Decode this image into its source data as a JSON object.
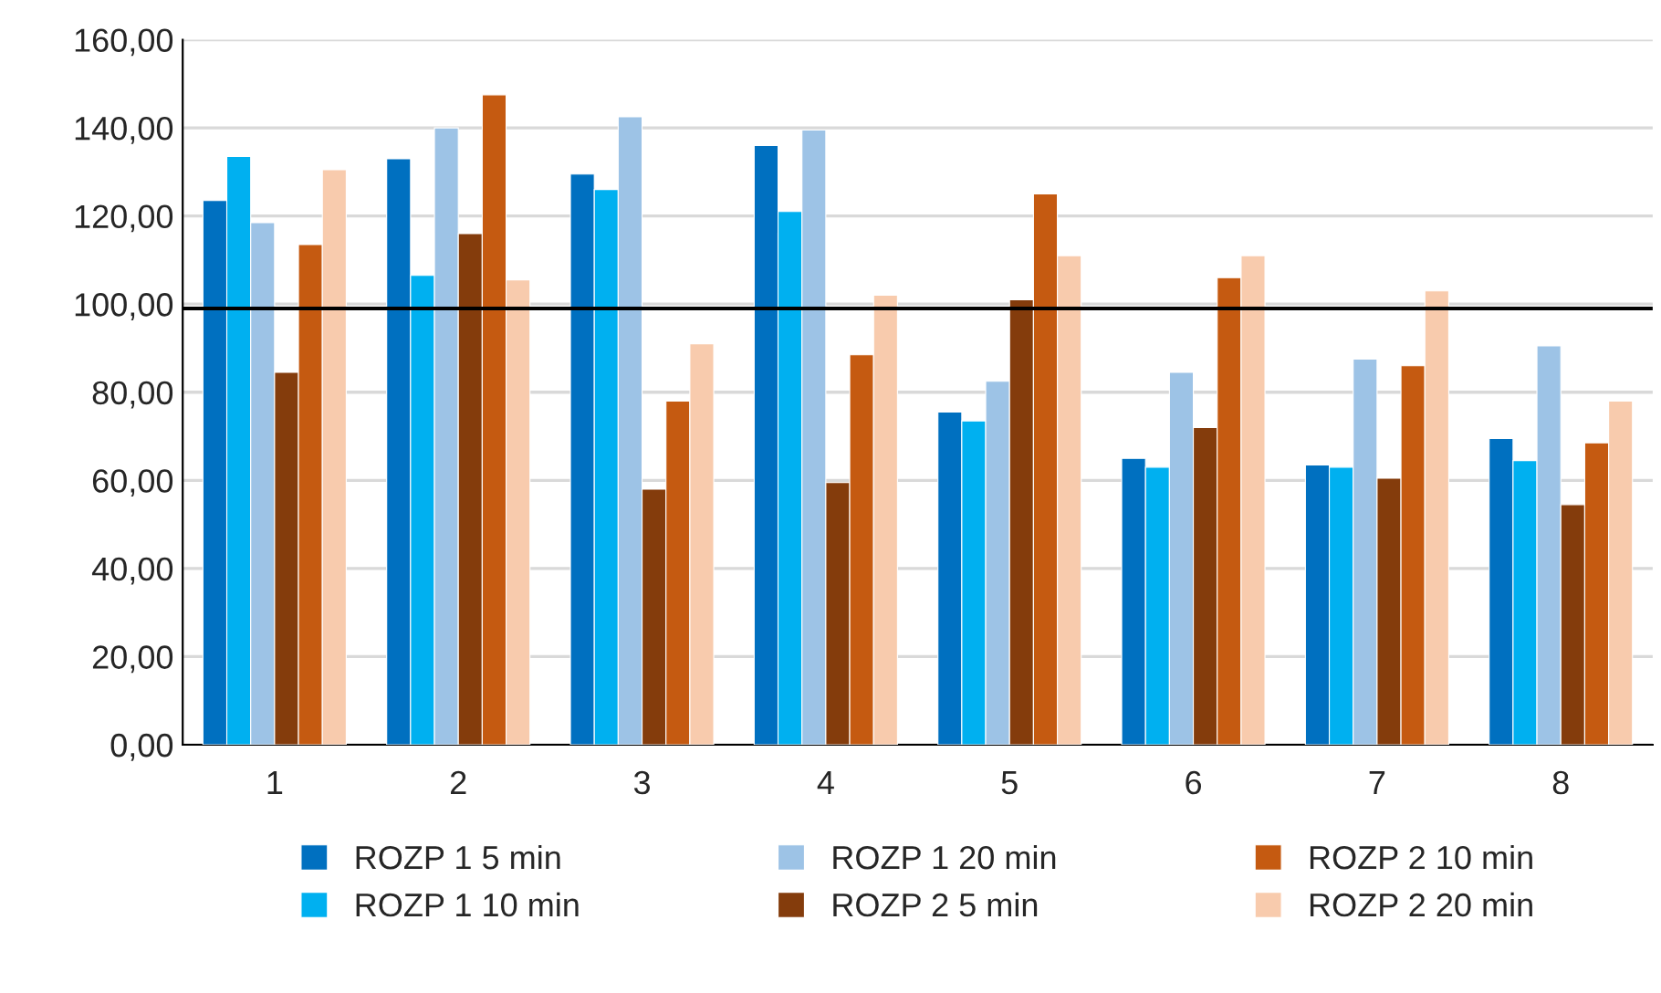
{
  "chart_data": {
    "type": "bar",
    "categories": [
      "1",
      "2",
      "3",
      "4",
      "5",
      "6",
      "7",
      "8"
    ],
    "series": [
      {
        "name": "ROZP 1 5 min",
        "color": "#0070c0",
        "values": [
          123.5,
          133,
          129.5,
          136,
          75.5,
          65,
          63.5,
          69.5
        ]
      },
      {
        "name": "ROZP 1 10 min",
        "color": "#00b0f0",
        "values": [
          133.5,
          106.5,
          126,
          121,
          73.5,
          63,
          63,
          64.5
        ]
      },
      {
        "name": "ROZP 1 20 min",
        "color": "#9dc3e6",
        "values": [
          118.5,
          140,
          142.5,
          139.5,
          82.5,
          84.5,
          87.5,
          90.5
        ]
      },
      {
        "name": "ROZP 2 5 min",
        "color": "#843c0c",
        "values": [
          84.5,
          116,
          58,
          59.5,
          101,
          72,
          60.5,
          54.5
        ]
      },
      {
        "name": "ROZP 2 10 min",
        "color": "#c55a11",
        "values": [
          113.5,
          147.5,
          78,
          88.5,
          125,
          106,
          86,
          68.5
        ]
      },
      {
        "name": "ROZP 2 20 min",
        "color": "#f8cbad",
        "values": [
          130.5,
          105.5,
          91,
          102,
          111,
          111,
          103,
          78
        ]
      }
    ],
    "ylim": [
      0,
      160
    ],
    "yticks": [
      {
        "value": 0,
        "label": "0,00"
      },
      {
        "value": 20,
        "label": "20,00"
      },
      {
        "value": 40,
        "label": "40,00"
      },
      {
        "value": 60,
        "label": "60,00"
      },
      {
        "value": 80,
        "label": "80,00"
      },
      {
        "value": 100,
        "label": "100,00"
      },
      {
        "value": 120,
        "label": "120,00"
      },
      {
        "value": 140,
        "label": "140,00"
      },
      {
        "value": 160,
        "label": "160,00"
      }
    ],
    "ref_lines": [
      {
        "axis": "y",
        "value": 99,
        "color": "#000000"
      }
    ],
    "grid": "y",
    "legend": "bottom"
  }
}
